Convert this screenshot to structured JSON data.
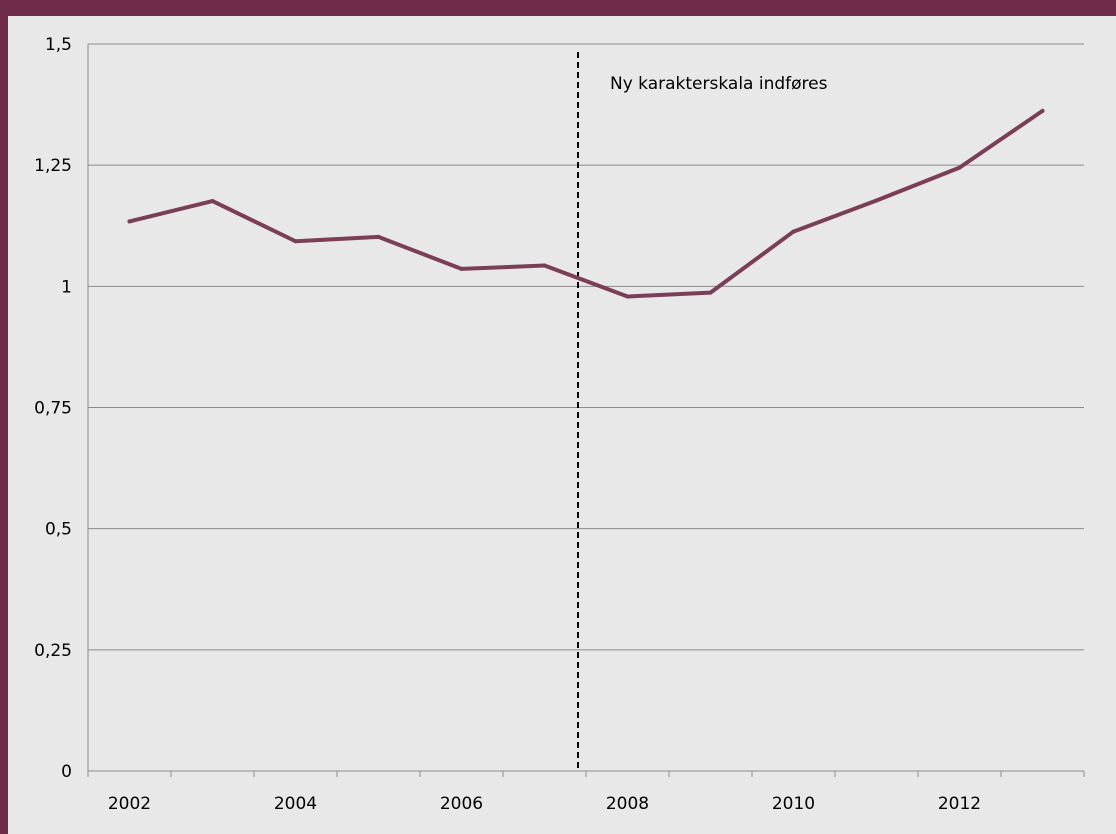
{
  "colors": {
    "frame": "#6e2b4a",
    "plot_background": "#e8e8e8",
    "series_line": "#7b3e57",
    "gridline": "#8c8c8c",
    "marker_line": "#000000"
  },
  "chart_data": {
    "type": "line",
    "title": "",
    "xlabel": "",
    "ylabel": "",
    "x": [
      2002,
      2003,
      2004,
      2005,
      2006,
      2007,
      2008,
      2009,
      2010,
      2011,
      2012,
      2013
    ],
    "series": [
      {
        "values": [
          1.134,
          1.176,
          1.093,
          1.102,
          1.036,
          1.043,
          0.979,
          0.987,
          1.113,
          1.177,
          1.245,
          1.362
        ]
      }
    ],
    "xlim": [
      2001.5,
      2013.5
    ],
    "ylim": [
      0,
      1.5
    ],
    "x_tick_labels": [
      "2002",
      "2004",
      "2006",
      "2008",
      "2010",
      "2012"
    ],
    "y_tick_labels": [
      "0",
      "0,25",
      "0,5",
      "0,75",
      "1",
      "1,25",
      "1,5"
    ],
    "grid": "horizontal",
    "legend": "none",
    "annotations": [
      {
        "text": "Ny karakterskala indføres",
        "x": 2007,
        "line": "dashed-vertical"
      }
    ]
  }
}
